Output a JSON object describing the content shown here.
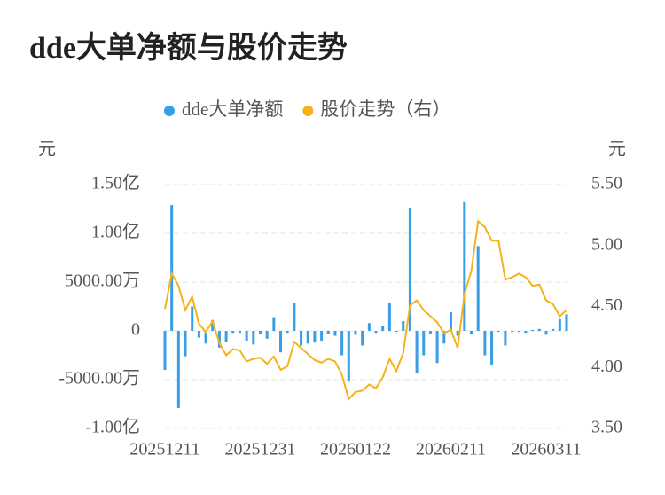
{
  "chart_data": {
    "type": "bar-line",
    "title": "dde大单净额与股价走势",
    "y_unit": "元",
    "y2_unit": "元",
    "categories": [
      "20251211",
      null,
      null,
      null,
      null,
      null,
      null,
      null,
      null,
      null,
      null,
      null,
      null,
      null,
      "20251231",
      null,
      null,
      null,
      null,
      null,
      null,
      null,
      null,
      null,
      null,
      null,
      null,
      null,
      "20260122",
      null,
      null,
      null,
      null,
      null,
      null,
      null,
      null,
      null,
      null,
      null,
      null,
      null,
      "20260211",
      null,
      null,
      null,
      null,
      null,
      null,
      null,
      null,
      null,
      null,
      null,
      null,
      null,
      "20260311",
      null,
      null,
      null
    ],
    "series": [
      {
        "name": "dde大单净额",
        "color": "#3a9ee6",
        "type": "bar",
        "values": [
          -4000,
          12900,
          -7900,
          -2600,
          2500,
          -700,
          -1300,
          1100,
          -1700,
          -1100,
          -200,
          -200,
          -1000,
          -1400,
          -300,
          -800,
          1400,
          -2200,
          -200,
          2900,
          -1500,
          -1300,
          -1200,
          -1000,
          -300,
          -500,
          -2500,
          -5200,
          -400,
          -1500,
          800,
          -200,
          500,
          2900,
          -100,
          1000,
          12600,
          -4300,
          -2500,
          -300,
          -3300,
          -1300,
          1900,
          -500,
          13200,
          -300,
          8700,
          -2500,
          -3500,
          -100,
          -1500,
          -100,
          -100,
          -200,
          100,
          200,
          -400,
          200,
          1200,
          1700
        ]
      },
      {
        "name": "股价走势（右）",
        "color": "#f5b21c",
        "type": "line",
        "axis": "y2",
        "values": [
          4.48,
          4.77,
          4.67,
          4.47,
          4.58,
          4.36,
          4.29,
          4.38,
          4.2,
          4.1,
          4.15,
          4.14,
          4.05,
          4.07,
          4.08,
          4.03,
          4.09,
          3.98,
          4.01,
          4.21,
          4.16,
          4.11,
          4.06,
          4.04,
          4.07,
          4.05,
          3.94,
          3.74,
          3.8,
          3.81,
          3.86,
          3.83,
          3.92,
          4.07,
          3.97,
          4.12,
          4.51,
          4.55,
          4.47,
          4.42,
          4.37,
          4.28,
          4.31,
          4.16,
          4.6,
          4.79,
          5.2,
          5.15,
          5.04,
          5.04,
          4.72,
          4.74,
          4.77,
          4.74,
          4.67,
          4.68,
          4.55,
          4.52,
          4.42,
          4.47
        ]
      }
    ],
    "ylim": [
      -10000,
      15000
    ],
    "yticks": [
      {
        "value": -10000,
        "label": "-1.00亿"
      },
      {
        "value": -5000,
        "label": "-5000.00万"
      },
      0,
      {
        "value": 5000,
        "label": "5000.00万"
      },
      {
        "value": 10000,
        "label": "1.00亿"
      },
      {
        "value": 15000,
        "label": "1.50亿"
      }
    ],
    "y2lim": [
      3.5,
      5.5
    ],
    "y2ticks": [
      {
        "value": 3.5,
        "label": "3.50"
      },
      {
        "value": 4.0,
        "label": "4.00"
      },
      {
        "value": 4.5,
        "label": "4.50"
      },
      {
        "value": 5.0,
        "label": "5.00"
      },
      {
        "value": 5.5,
        "label": "5.50"
      }
    ],
    "grid": true
  }
}
